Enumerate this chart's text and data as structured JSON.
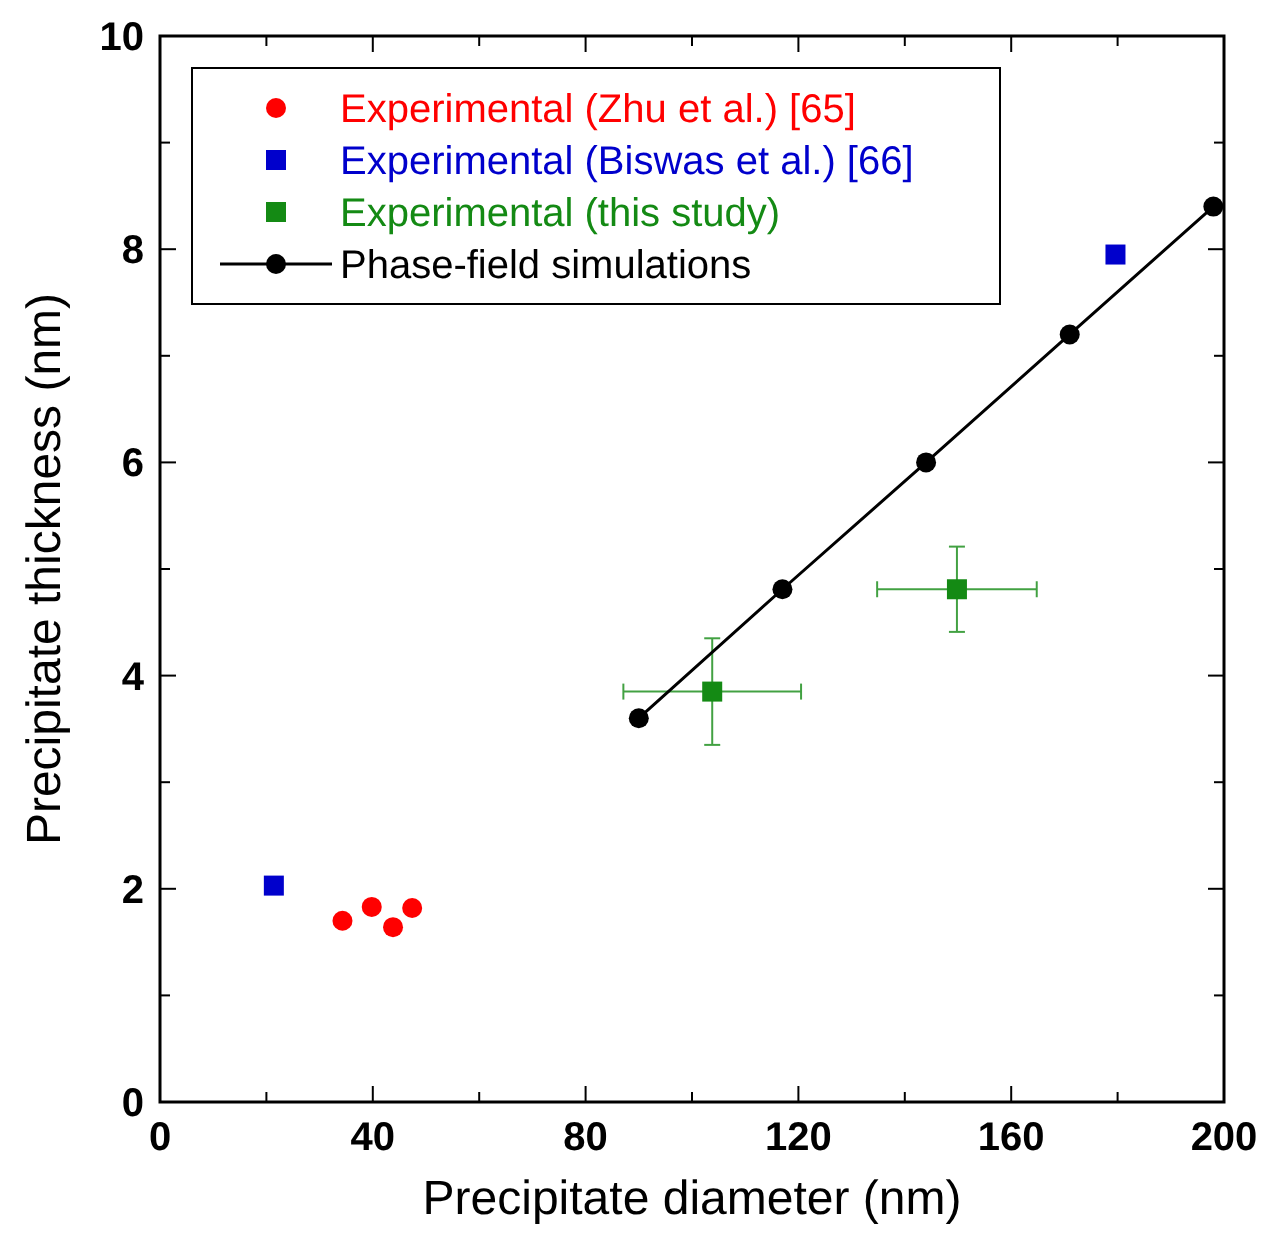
{
  "chart_data": {
    "type": "scatter",
    "xlabel": "Precipitate diameter (nm)",
    "ylabel": "Precipitate thickness (nm)",
    "xlim": [
      0,
      200
    ],
    "ylim": [
      0,
      10
    ],
    "xticks": [
      0,
      {
        "value": 20,
        "label": null
      },
      40,
      {
        "value": 60,
        "label": null
      },
      80,
      {
        "value": 100,
        "label": null
      },
      120,
      {
        "value": 140,
        "label": null
      },
      160,
      {
        "value": 180,
        "label": null
      },
      200
    ],
    "yticks": [
      0,
      {
        "value": 1,
        "label": null
      },
      2,
      {
        "value": 3,
        "label": null
      },
      4,
      {
        "value": 5,
        "label": null
      },
      6,
      {
        "value": 7,
        "label": null
      },
      8,
      {
        "value": 9,
        "label": null
      },
      10
    ],
    "legend": "top left",
    "grid": false,
    "series": [
      {
        "name": "Experimental (Zhu et al.) [65]",
        "color": "#ff0000",
        "marker": "circle",
        "x": [
          34.3,
          39.8,
          43.8,
          47.4
        ],
        "values": [
          1.7,
          1.83,
          1.64,
          1.82
        ]
      },
      {
        "name": "Experimental (Biswas et al.) [66]",
        "color": "#0000cc",
        "marker": "square",
        "x": [
          21.4,
          179.6
        ],
        "values": [
          2.03,
          7.95
        ]
      },
      {
        "name": "Experimental (this study)",
        "color": "#148a14",
        "marker": "square",
        "x": [
          103.8,
          149.8
        ],
        "values": [
          3.85,
          4.81
        ],
        "errors": [
          0.5,
          0.4
        ],
        "xerrors": [
          16.7,
          15
        ]
      },
      {
        "name": "Phase-field simulations",
        "type": "line",
        "color": "#000000",
        "marker": "circle",
        "line_style": "solid",
        "x": [
          90,
          117,
          144,
          171,
          198
        ],
        "values": [
          3.6,
          4.81,
          6.0,
          7.2,
          8.4
        ]
      }
    ]
  }
}
